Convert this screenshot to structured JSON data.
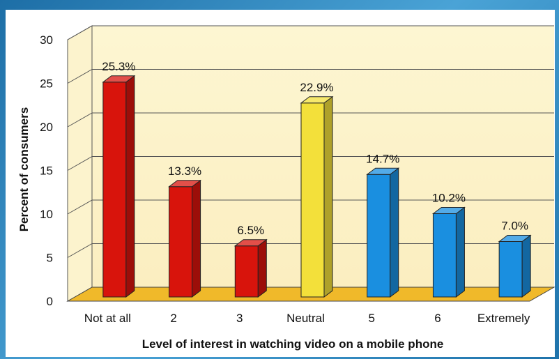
{
  "chart_data": {
    "type": "bar",
    "title": "",
    "xlabel": "Level of interest in watching video on a mobile phone",
    "ylabel": "Percent of consumers",
    "ylim": [
      0,
      30
    ],
    "yticks": [
      0,
      5,
      10,
      15,
      20,
      25,
      30
    ],
    "grid": true,
    "categories": [
      "Not at all",
      "2",
      "3",
      "Neutral",
      "5",
      "6",
      "Extremely"
    ],
    "values": [
      25.3,
      13.3,
      6.5,
      22.9,
      14.7,
      10.2,
      7.0
    ],
    "data_labels": [
      "25.3%",
      "13.3%",
      "6.5%",
      "22.9%",
      "14.7%",
      "10.2%",
      "7.0%"
    ],
    "bar_colors": [
      "#d8140c",
      "#d8140c",
      "#d8140c",
      "#f3e03a",
      "#1a8fe0",
      "#1a8fe0",
      "#1a8fe0"
    ],
    "floor_color": "#f0b92a"
  }
}
